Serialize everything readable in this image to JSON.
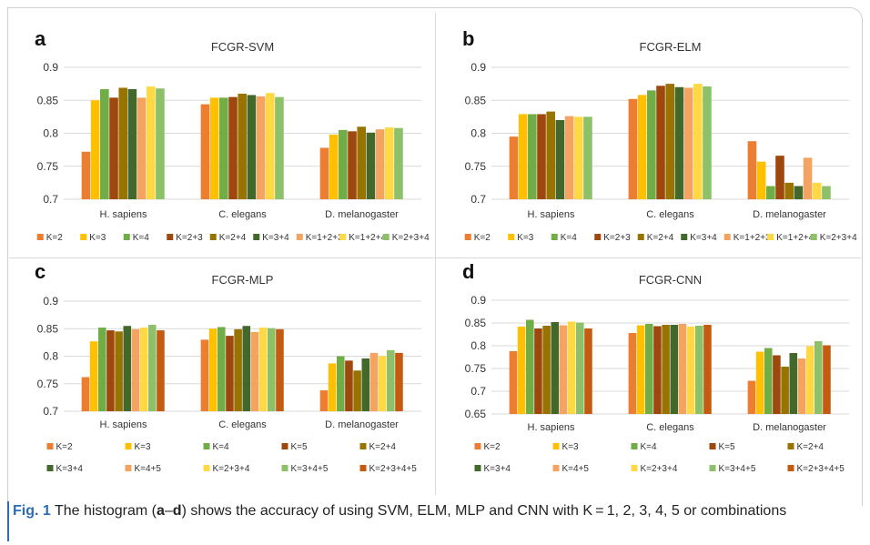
{
  "colors": [
    "#ED7D31",
    "#FFC000",
    "#70AD47",
    "#9E480E",
    "#997300",
    "#43682B",
    "#F4A460",
    "#FFD944",
    "#8CC16A",
    "#C55A11"
  ],
  "caption": {
    "fig_label": "Fig. 1",
    "text_before": " The histogram (",
    "panel_a": "a",
    "dash": "–",
    "panel_d": "d",
    "text_after": ") shows the accuracy of using SVM, ELM, MLP and CNN with K = 1, 2, 3, 4, 5 or combinations"
  },
  "chart_data": [
    {
      "panel": "a",
      "type": "bar",
      "title": "FCGR-SVM",
      "categories": [
        "H. sapiens",
        "C. elegans",
        "D. melanogaster"
      ],
      "ylim": [
        0.7,
        0.9
      ],
      "yticks": [
        "0.7",
        "0.75",
        "0.8",
        "0.85",
        "0.9"
      ],
      "grid": true,
      "legend_position": "bottom",
      "series": [
        {
          "name": "K=2",
          "values": [
            0.772,
            0.844,
            0.778
          ]
        },
        {
          "name": "K=3",
          "values": [
            0.85,
            0.854,
            0.798
          ]
        },
        {
          "name": "K=4",
          "values": [
            0.867,
            0.854,
            0.805
          ]
        },
        {
          "name": "K=2+3",
          "values": [
            0.854,
            0.855,
            0.803
          ]
        },
        {
          "name": "K=2+4",
          "values": [
            0.869,
            0.86,
            0.81
          ]
        },
        {
          "name": "K=3+4",
          "values": [
            0.867,
            0.858,
            0.801
          ]
        },
        {
          "name": "K=1+2+3",
          "values": [
            0.854,
            0.856,
            0.806
          ]
        },
        {
          "name": "K=1+2+4",
          "values": [
            0.871,
            0.861,
            0.809
          ]
        },
        {
          "name": "K=2+3+4",
          "values": [
            0.868,
            0.855,
            0.808
          ]
        }
      ]
    },
    {
      "panel": "b",
      "type": "bar",
      "title": "FCGR-ELM",
      "categories": [
        "H. sapiens",
        "C. elegans",
        "D. melanogaster"
      ],
      "ylim": [
        0.7,
        0.9
      ],
      "yticks": [
        "0.7",
        "0.75",
        "0.8",
        "0.85",
        "0.9"
      ],
      "grid": true,
      "legend_position": "bottom",
      "series": [
        {
          "name": "K=2",
          "values": [
            0.795,
            0.852,
            0.788
          ]
        },
        {
          "name": "K=3",
          "values": [
            0.829,
            0.858,
            0.757
          ]
        },
        {
          "name": "K=4",
          "values": [
            0.829,
            0.865,
            0.72
          ]
        },
        {
          "name": "K=2+3",
          "values": [
            0.829,
            0.872,
            0.766
          ]
        },
        {
          "name": "K=2+4",
          "values": [
            0.833,
            0.875,
            0.725
          ]
        },
        {
          "name": "K=3+4",
          "values": [
            0.82,
            0.87,
            0.72
          ]
        },
        {
          "name": "K=1+2+3",
          "values": [
            0.826,
            0.869,
            0.763
          ]
        },
        {
          "name": "K=1+2+4",
          "values": [
            0.825,
            0.875,
            0.725
          ]
        },
        {
          "name": "K=2+3+4",
          "values": [
            0.825,
            0.871,
            0.72
          ]
        }
      ]
    },
    {
      "panel": "c",
      "type": "bar",
      "title": "FCGR-MLP",
      "categories": [
        "H. sapiens",
        "C. elegans",
        "D. melanogaster"
      ],
      "ylim": [
        0.7,
        0.9
      ],
      "yticks": [
        "0.7",
        "0.75",
        "0.8",
        "0.85",
        "0.9"
      ],
      "grid": true,
      "legend_position": "bottom",
      "series": [
        {
          "name": "K=2",
          "values": [
            0.762,
            0.83,
            0.738
          ]
        },
        {
          "name": "K=3",
          "values": [
            0.827,
            0.85,
            0.787
          ]
        },
        {
          "name": "K=4",
          "values": [
            0.852,
            0.853,
            0.8
          ]
        },
        {
          "name": "K=5",
          "values": [
            0.847,
            0.837,
            0.792
          ]
        },
        {
          "name": "K=2+4",
          "values": [
            0.845,
            0.849,
            0.774
          ]
        },
        {
          "name": "K=3+4",
          "values": [
            0.855,
            0.855,
            0.796
          ]
        },
        {
          "name": "K=4+5",
          "values": [
            0.849,
            0.844,
            0.806
          ]
        },
        {
          "name": "K=2+3+4",
          "values": [
            0.852,
            0.852,
            0.8
          ]
        },
        {
          "name": "K=3+4+5",
          "values": [
            0.857,
            0.851,
            0.811
          ]
        },
        {
          "name": "K=2+3+4+5",
          "values": [
            0.847,
            0.849,
            0.806
          ]
        }
      ]
    },
    {
      "panel": "d",
      "type": "bar",
      "title": "FCGR-CNN",
      "categories": [
        "H. sapiens",
        "C. elegans",
        "D. melanogaster"
      ],
      "ylim": [
        0.65,
        0.9
      ],
      "yticks": [
        "0.65",
        "0.7",
        "0.75",
        "0.8",
        "0.85",
        "0.9"
      ],
      "grid": true,
      "legend_position": "bottom",
      "series": [
        {
          "name": "K=2",
          "values": [
            0.788,
            0.828,
            0.723
          ]
        },
        {
          "name": "K=3",
          "values": [
            0.842,
            0.845,
            0.787
          ]
        },
        {
          "name": "K=4",
          "values": [
            0.857,
            0.848,
            0.795
          ]
        },
        {
          "name": "K=5",
          "values": [
            0.838,
            0.843,
            0.779
          ]
        },
        {
          "name": "K=2+4",
          "values": [
            0.844,
            0.846,
            0.754
          ]
        },
        {
          "name": "K=3+4",
          "values": [
            0.852,
            0.846,
            0.784
          ]
        },
        {
          "name": "K=4+5",
          "values": [
            0.845,
            0.848,
            0.772
          ]
        },
        {
          "name": "K=2+3+4",
          "values": [
            0.853,
            0.842,
            0.799
          ]
        },
        {
          "name": "K=3+4+5",
          "values": [
            0.851,
            0.844,
            0.81
          ]
        },
        {
          "name": "K=2+3+4+5",
          "values": [
            0.838,
            0.846,
            0.801
          ]
        }
      ]
    }
  ]
}
